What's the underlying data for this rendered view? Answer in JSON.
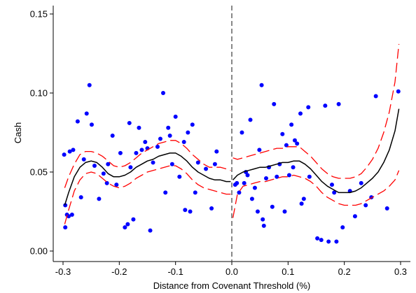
{
  "chart_data": {
    "type": "scatter",
    "xlabel": "Distance from Covenant Threshold (%)",
    "ylabel": "Cash",
    "xlim": [
      -0.3,
      0.3
    ],
    "ylim": [
      0.0,
      0.15
    ],
    "x_ticks": [
      -0.3,
      -0.2,
      -0.1,
      0.0,
      0.1,
      0.2,
      0.3
    ],
    "x_tick_labels": [
      "-0.3",
      "-0.2",
      "-0.1",
      "0.0",
      "0.1",
      "0.2",
      "0.3"
    ],
    "y_ticks": [
      0.0,
      0.05,
      0.1,
      0.15
    ],
    "y_tick_labels": [
      "0.00",
      "0.05",
      "0.10",
      "0.15"
    ],
    "threshold": 0.0,
    "grid": false,
    "colors": {
      "points": "#0000ff",
      "fit": "#000000",
      "ci": "#ff0000",
      "threshold": "#555555"
    },
    "points": [
      [
        -0.298,
        0.061
      ],
      [
        -0.296,
        0.029
      ],
      [
        -0.296,
        0.015
      ],
      [
        -0.293,
        0.023
      ],
      [
        -0.29,
        0.022
      ],
      [
        -0.288,
        0.063
      ],
      [
        -0.284,
        0.023
      ],
      [
        -0.282,
        0.064
      ],
      [
        -0.274,
        0.082
      ],
      [
        -0.268,
        0.034
      ],
      [
        -0.263,
        0.058
      ],
      [
        -0.258,
        0.087
      ],
      [
        -0.253,
        0.105
      ],
      [
        -0.249,
        0.08
      ],
      [
        -0.244,
        0.054
      ],
      [
        -0.236,
        0.033
      ],
      [
        -0.228,
        0.049
      ],
      [
        -0.222,
        0.043
      ],
      [
        -0.22,
        0.055
      ],
      [
        -0.212,
        0.073
      ],
      [
        -0.205,
        0.042
      ],
      [
        -0.198,
        0.062
      ],
      [
        -0.19,
        0.015
      ],
      [
        -0.185,
        0.017
      ],
      [
        -0.182,
        0.081
      ],
      [
        -0.18,
        0.053
      ],
      [
        -0.175,
        0.02
      ],
      [
        -0.17,
        0.062
      ],
      [
        -0.165,
        0.078
      ],
      [
        -0.16,
        0.064
      ],
      [
        -0.154,
        0.069
      ],
      [
        -0.15,
        0.065
      ],
      [
        -0.145,
        0.013
      ],
      [
        -0.14,
        0.056
      ],
      [
        -0.132,
        0.066
      ],
      [
        -0.127,
        0.071
      ],
      [
        -0.122,
        0.1
      ],
      [
        -0.118,
        0.037
      ],
      [
        -0.113,
        0.078
      ],
      [
        -0.11,
        0.073
      ],
      [
        -0.106,
        0.055
      ],
      [
        -0.1,
        0.085
      ],
      [
        -0.093,
        0.047
      ],
      [
        -0.085,
        0.069
      ],
      [
        -0.083,
        0.026
      ],
      [
        -0.078,
        0.075
      ],
      [
        -0.074,
        0.025
      ],
      [
        -0.07,
        0.08
      ],
      [
        -0.065,
        0.037
      ],
      [
        -0.06,
        0.056
      ],
      [
        -0.046,
        0.052
      ],
      [
        -0.036,
        0.027
      ],
      [
        -0.03,
        0.055
      ],
      [
        -0.027,
        0.063
      ],
      [
        0.006,
        0.042
      ],
      [
        0.009,
        0.043
      ],
      [
        0.013,
        0.037
      ],
      [
        0.018,
        0.075
      ],
      [
        0.022,
        0.043
      ],
      [
        0.025,
        0.05
      ],
      [
        0.028,
        0.048
      ],
      [
        0.033,
        0.083
      ],
      [
        0.036,
        0.033
      ],
      [
        0.041,
        0.04
      ],
      [
        0.046,
        0.025
      ],
      [
        0.049,
        0.064
      ],
      [
        0.053,
        0.105
      ],
      [
        0.055,
        0.02
      ],
      [
        0.057,
        0.016
      ],
      [
        0.061,
        0.046
      ],
      [
        0.066,
        0.053
      ],
      [
        0.072,
        0.028
      ],
      [
        0.075,
        0.093
      ],
      [
        0.08,
        0.047
      ],
      [
        0.085,
        0.055
      ],
      [
        0.09,
        0.074
      ],
      [
        0.094,
        0.025
      ],
      [
        0.097,
        0.067
      ],
      [
        0.102,
        0.048
      ],
      [
        0.106,
        0.08
      ],
      [
        0.109,
        0.053
      ],
      [
        0.112,
        0.07
      ],
      [
        0.116,
        0.068
      ],
      [
        0.122,
        0.087
      ],
      [
        0.124,
        0.03
      ],
      [
        0.128,
        0.033
      ],
      [
        0.136,
        0.091
      ],
      [
        0.138,
        0.047
      ],
      [
        0.152,
        0.008
      ],
      [
        0.159,
        0.007
      ],
      [
        0.166,
        0.092
      ],
      [
        0.172,
        0.006
      ],
      [
        0.178,
        0.042
      ],
      [
        0.182,
        0.037
      ],
      [
        0.186,
        0.006
      ],
      [
        0.19,
        0.093
      ],
      [
        0.197,
        0.015
      ],
      [
        0.21,
        0.038
      ],
      [
        0.219,
        0.022
      ],
      [
        0.23,
        0.043
      ],
      [
        0.238,
        0.029
      ],
      [
        0.248,
        0.034
      ],
      [
        0.256,
        0.098
      ],
      [
        0.276,
        0.027
      ],
      [
        0.296,
        0.101
      ]
    ],
    "fit_left": {
      "x": [
        -0.297,
        -0.29,
        -0.28,
        -0.27,
        -0.26,
        -0.25,
        -0.24,
        -0.23,
        -0.22,
        -0.21,
        -0.2,
        -0.19,
        -0.18,
        -0.17,
        -0.16,
        -0.15,
        -0.14,
        -0.13,
        -0.12,
        -0.11,
        -0.1,
        -0.09,
        -0.08,
        -0.07,
        -0.06,
        -0.05,
        -0.04,
        -0.03,
        -0.02,
        -0.01,
        -0.002
      ],
      "y": [
        0.029,
        0.037,
        0.047,
        0.053,
        0.056,
        0.057,
        0.056,
        0.053,
        0.049,
        0.047,
        0.047,
        0.048,
        0.05,
        0.053,
        0.055,
        0.057,
        0.058,
        0.06,
        0.061,
        0.062,
        0.062,
        0.06,
        0.057,
        0.053,
        0.05,
        0.048,
        0.046,
        0.045,
        0.045,
        0.044,
        0.044
      ]
    },
    "ci_upper_left": {
      "x": [
        -0.297,
        -0.29,
        -0.28,
        -0.27,
        -0.26,
        -0.25,
        -0.24,
        -0.23,
        -0.22,
        -0.21,
        -0.2,
        -0.19,
        -0.18,
        -0.17,
        -0.16,
        -0.15,
        -0.14,
        -0.13,
        -0.12,
        -0.11,
        -0.1,
        -0.09,
        -0.08,
        -0.07,
        -0.06,
        -0.05,
        -0.04,
        -0.03,
        -0.02,
        -0.01,
        -0.002
      ],
      "y": [
        0.04,
        0.047,
        0.055,
        0.061,
        0.063,
        0.063,
        0.062,
        0.06,
        0.057,
        0.054,
        0.053,
        0.054,
        0.056,
        0.059,
        0.062,
        0.064,
        0.066,
        0.068,
        0.069,
        0.07,
        0.07,
        0.068,
        0.065,
        0.061,
        0.058,
        0.055,
        0.053,
        0.053,
        0.053,
        0.052,
        0.051
      ]
    },
    "ci_lower_left": {
      "x": [
        -0.297,
        -0.29,
        -0.28,
        -0.27,
        -0.26,
        -0.25,
        -0.24,
        -0.23,
        -0.22,
        -0.21,
        -0.2,
        -0.19,
        -0.18,
        -0.17,
        -0.16,
        -0.15,
        -0.14,
        -0.13,
        -0.12,
        -0.11,
        -0.1,
        -0.09,
        -0.08,
        -0.07,
        -0.06,
        -0.05,
        -0.04,
        -0.03,
        -0.02,
        -0.01,
        -0.002
      ],
      "y": [
        0.017,
        0.026,
        0.038,
        0.045,
        0.049,
        0.05,
        0.049,
        0.046,
        0.043,
        0.041,
        0.04,
        0.041,
        0.043,
        0.046,
        0.048,
        0.05,
        0.051,
        0.052,
        0.053,
        0.054,
        0.054,
        0.052,
        0.049,
        0.045,
        0.042,
        0.04,
        0.039,
        0.038,
        0.037,
        0.036,
        0.036
      ]
    },
    "fit_right": {
      "x": [
        0.002,
        0.01,
        0.02,
        0.03,
        0.04,
        0.05,
        0.06,
        0.07,
        0.08,
        0.09,
        0.1,
        0.11,
        0.12,
        0.13,
        0.14,
        0.15,
        0.16,
        0.17,
        0.18,
        0.19,
        0.2,
        0.21,
        0.22,
        0.23,
        0.24,
        0.25,
        0.26,
        0.27,
        0.28,
        0.29,
        0.297
      ],
      "y": [
        0.045,
        0.048,
        0.05,
        0.051,
        0.052,
        0.053,
        0.053,
        0.054,
        0.055,
        0.056,
        0.056,
        0.057,
        0.057,
        0.055,
        0.052,
        0.048,
        0.044,
        0.041,
        0.039,
        0.037,
        0.037,
        0.037,
        0.038,
        0.04,
        0.043,
        0.046,
        0.05,
        0.056,
        0.064,
        0.076,
        0.09
      ]
    },
    "ci_upper_right": {
      "x": [
        0.002,
        0.01,
        0.02,
        0.03,
        0.04,
        0.05,
        0.06,
        0.07,
        0.08,
        0.09,
        0.1,
        0.11,
        0.12,
        0.13,
        0.14,
        0.15,
        0.16,
        0.17,
        0.18,
        0.19,
        0.2,
        0.21,
        0.22,
        0.23,
        0.24,
        0.25,
        0.26,
        0.27,
        0.28,
        0.29,
        0.297
      ],
      "y": [
        0.059,
        0.058,
        0.059,
        0.06,
        0.061,
        0.062,
        0.063,
        0.064,
        0.065,
        0.065,
        0.066,
        0.066,
        0.066,
        0.063,
        0.06,
        0.056,
        0.052,
        0.049,
        0.047,
        0.046,
        0.046,
        0.046,
        0.047,
        0.049,
        0.053,
        0.058,
        0.065,
        0.075,
        0.088,
        0.107,
        0.131
      ]
    },
    "ci_lower_right": {
      "x": [
        0.002,
        0.01,
        0.02,
        0.03,
        0.04,
        0.05,
        0.06,
        0.07,
        0.08,
        0.09,
        0.1,
        0.11,
        0.12,
        0.13,
        0.14,
        0.15,
        0.16,
        0.17,
        0.18,
        0.19,
        0.2,
        0.21,
        0.22,
        0.23,
        0.24,
        0.25,
        0.26,
        0.27,
        0.28,
        0.29,
        0.297
      ],
      "y": [
        0.021,
        0.036,
        0.041,
        0.042,
        0.043,
        0.044,
        0.044,
        0.045,
        0.046,
        0.047,
        0.047,
        0.048,
        0.047,
        0.046,
        0.044,
        0.041,
        0.037,
        0.034,
        0.032,
        0.03,
        0.029,
        0.029,
        0.029,
        0.03,
        0.032,
        0.034,
        0.036,
        0.038,
        0.041,
        0.045,
        0.051
      ]
    }
  }
}
